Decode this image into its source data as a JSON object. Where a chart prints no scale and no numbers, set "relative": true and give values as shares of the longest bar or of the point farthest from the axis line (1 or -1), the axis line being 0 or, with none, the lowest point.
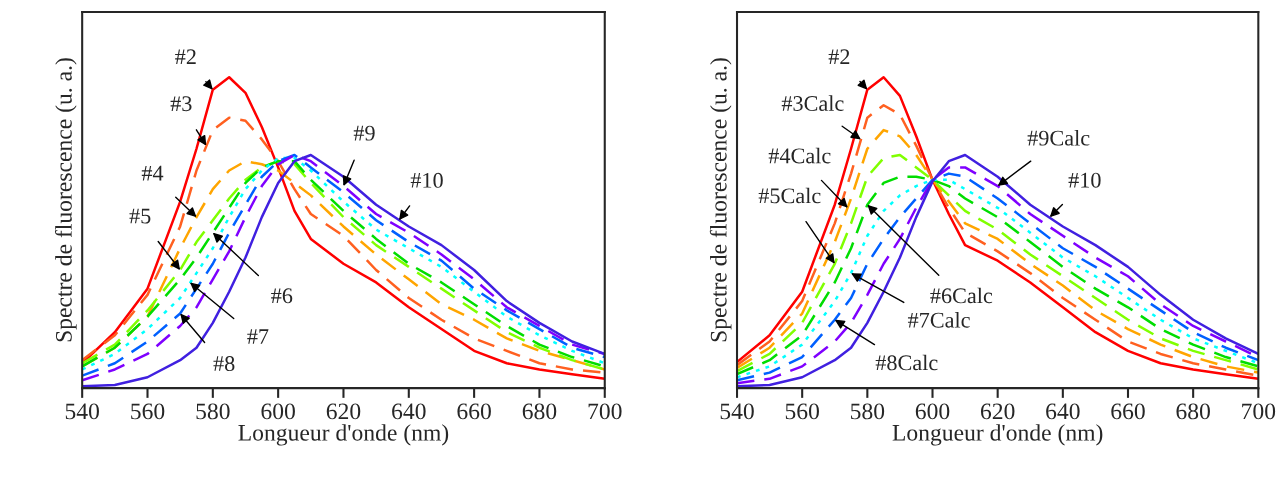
{
  "chart_data": [
    {
      "type": "line",
      "relative": true,
      "xlabel": "Longueur d'onde (nm)",
      "ylabel": "Spectre de fluorescence (u. a.)",
      "xlim": [
        540,
        700
      ],
      "xticks": [
        540,
        560,
        580,
        600,
        620,
        640,
        660,
        680,
        700
      ],
      "grid": false,
      "legend": false,
      "x": [
        540,
        550,
        560,
        570,
        575,
        580,
        585,
        590,
        595,
        600,
        605,
        610,
        620,
        630,
        640,
        650,
        660,
        670,
        680,
        690,
        700
      ],
      "series": [
        {
          "color": "#ff0000",
          "line_style": "solid",
          "values": [
            0.08,
            0.18,
            0.32,
            0.6,
            0.77,
            0.96,
            1.0,
            0.95,
            0.84,
            0.71,
            0.57,
            0.48,
            0.4,
            0.34,
            0.26,
            0.19,
            0.12,
            0.08,
            0.06,
            0.045,
            0.03
          ]
        },
        {
          "color": "#ff6020",
          "line_style": "dashed",
          "values": [
            0.09,
            0.17,
            0.3,
            0.52,
            0.7,
            0.83,
            0.87,
            0.86,
            0.8,
            0.73,
            0.64,
            0.56,
            0.49,
            0.38,
            0.29,
            0.22,
            0.16,
            0.12,
            0.08,
            0.06,
            0.05
          ]
        },
        {
          "color": "#ffa500",
          "line_style": "dashed",
          "values": [
            0.07,
            0.13,
            0.23,
            0.45,
            0.55,
            0.64,
            0.7,
            0.73,
            0.72,
            0.7,
            0.66,
            0.62,
            0.52,
            0.43,
            0.35,
            0.27,
            0.22,
            0.16,
            0.12,
            0.09,
            0.06
          ]
        },
        {
          "color": "#80ff00",
          "line_style": "dashed",
          "values": [
            0.08,
            0.14,
            0.25,
            0.38,
            0.47,
            0.54,
            0.61,
            0.67,
            0.71,
            0.73,
            0.72,
            0.66,
            0.55,
            0.46,
            0.39,
            0.32,
            0.25,
            0.18,
            0.13,
            0.09,
            0.06
          ]
        },
        {
          "color": "#00dd00",
          "line_style": "dashed",
          "values": [
            0.07,
            0.13,
            0.23,
            0.35,
            0.42,
            0.5,
            0.58,
            0.66,
            0.71,
            0.73,
            0.73,
            0.67,
            0.57,
            0.48,
            0.4,
            0.34,
            0.27,
            0.2,
            0.14,
            0.1,
            0.07
          ]
        },
        {
          "color": "#00ffff",
          "line_style": "dotted",
          "values": [
            0.06,
            0.11,
            0.19,
            0.29,
            0.37,
            0.45,
            0.55,
            0.64,
            0.7,
            0.74,
            0.74,
            0.7,
            0.6,
            0.51,
            0.45,
            0.39,
            0.31,
            0.23,
            0.17,
            0.12,
            0.08
          ]
        },
        {
          "color": "#0060ff",
          "line_style": "dashed",
          "values": [
            0.04,
            0.08,
            0.15,
            0.24,
            0.32,
            0.4,
            0.5,
            0.59,
            0.68,
            0.73,
            0.75,
            0.71,
            0.63,
            0.54,
            0.47,
            0.41,
            0.32,
            0.25,
            0.19,
            0.13,
            0.1
          ]
        },
        {
          "color": "#7f00ff",
          "line_style": "dashed",
          "values": [
            0.025,
            0.06,
            0.11,
            0.2,
            0.26,
            0.35,
            0.44,
            0.55,
            0.65,
            0.72,
            0.75,
            0.73,
            0.65,
            0.56,
            0.5,
            0.43,
            0.35,
            0.26,
            0.2,
            0.14,
            0.11
          ]
        },
        {
          "color": "#4020e0",
          "line_style": "solid",
          "values": [
            0.006,
            0.01,
            0.035,
            0.09,
            0.13,
            0.21,
            0.31,
            0.42,
            0.55,
            0.66,
            0.73,
            0.75,
            0.68,
            0.59,
            0.52,
            0.46,
            0.38,
            0.28,
            0.21,
            0.15,
            0.11
          ]
        }
      ],
      "annotations": [
        {
          "text": "#2",
          "x": 580,
          "y": 0.96
        },
        {
          "text": "#3",
          "x": 578,
          "y": 0.78
        },
        {
          "text": "#4",
          "x": 575,
          "y": 0.55
        },
        {
          "text": "#5",
          "x": 570,
          "y": 0.38
        },
        {
          "text": "#6",
          "x": 580,
          "y": 0.5
        },
        {
          "text": "#7",
          "x": 573,
          "y": 0.34
        },
        {
          "text": "#8",
          "x": 570,
          "y": 0.24
        },
        {
          "text": "#9",
          "x": 620,
          "y": 0.65
        },
        {
          "text": "#10",
          "x": 637,
          "y": 0.54
        }
      ]
    },
    {
      "type": "line",
      "relative": true,
      "xlabel": "Longueur d'onde (nm)",
      "ylabel": "Spectre de fluorescence (u. a.)",
      "xlim": [
        540,
        700
      ],
      "xticks": [
        540,
        560,
        580,
        600,
        620,
        640,
        660,
        680,
        700
      ],
      "grid": false,
      "legend": false,
      "x": [
        540,
        550,
        560,
        570,
        575,
        580,
        585,
        590,
        595,
        600,
        605,
        610,
        620,
        630,
        640,
        650,
        660,
        670,
        680,
        690,
        700
      ],
      "series": [
        {
          "color": "#ff0000",
          "line_style": "solid",
          "values": [
            0.084,
            0.17,
            0.31,
            0.59,
            0.77,
            0.96,
            1.0,
            0.94,
            0.81,
            0.67,
            0.56,
            0.46,
            0.41,
            0.34,
            0.26,
            0.18,
            0.12,
            0.08,
            0.06,
            0.045,
            0.03
          ]
        },
        {
          "color": "#ff6020",
          "line_style": "dashed",
          "values": [
            0.074,
            0.15,
            0.28,
            0.53,
            0.69,
            0.87,
            0.91,
            0.88,
            0.78,
            0.67,
            0.58,
            0.5,
            0.44,
            0.37,
            0.29,
            0.22,
            0.15,
            0.11,
            0.08,
            0.06,
            0.04
          ]
        },
        {
          "color": "#ffa500",
          "line_style": "dashed",
          "values": [
            0.065,
            0.13,
            0.24,
            0.47,
            0.61,
            0.77,
            0.83,
            0.81,
            0.75,
            0.67,
            0.6,
            0.53,
            0.48,
            0.4,
            0.33,
            0.25,
            0.19,
            0.14,
            0.1,
            0.07,
            0.05
          ]
        },
        {
          "color": "#80ff00",
          "line_style": "dashed",
          "values": [
            0.055,
            0.11,
            0.21,
            0.4,
            0.53,
            0.68,
            0.74,
            0.75,
            0.71,
            0.67,
            0.62,
            0.57,
            0.51,
            0.43,
            0.36,
            0.29,
            0.22,
            0.16,
            0.12,
            0.09,
            0.06
          ]
        },
        {
          "color": "#00dd00",
          "line_style": "dashed",
          "values": [
            0.045,
            0.09,
            0.17,
            0.34,
            0.45,
            0.59,
            0.66,
            0.68,
            0.68,
            0.67,
            0.65,
            0.61,
            0.55,
            0.47,
            0.39,
            0.32,
            0.26,
            0.19,
            0.14,
            0.1,
            0.07
          ]
        },
        {
          "color": "#00ffff",
          "line_style": "dotted",
          "values": [
            0.035,
            0.07,
            0.14,
            0.28,
            0.37,
            0.49,
            0.57,
            0.62,
            0.65,
            0.67,
            0.67,
            0.64,
            0.58,
            0.5,
            0.42,
            0.36,
            0.29,
            0.22,
            0.16,
            0.12,
            0.08
          ]
        },
        {
          "color": "#0060ff",
          "line_style": "dashed",
          "values": [
            0.025,
            0.05,
            0.1,
            0.22,
            0.29,
            0.4,
            0.48,
            0.55,
            0.61,
            0.67,
            0.69,
            0.68,
            0.61,
            0.53,
            0.45,
            0.39,
            0.32,
            0.25,
            0.18,
            0.13,
            0.09
          ]
        },
        {
          "color": "#7f00ff",
          "line_style": "dashed",
          "values": [
            0.016,
            0.03,
            0.07,
            0.15,
            0.21,
            0.3,
            0.4,
            0.48,
            0.58,
            0.67,
            0.71,
            0.71,
            0.65,
            0.56,
            0.49,
            0.42,
            0.36,
            0.27,
            0.2,
            0.15,
            0.1
          ]
        },
        {
          "color": "#4020e0",
          "line_style": "solid",
          "values": [
            0.006,
            0.01,
            0.035,
            0.09,
            0.13,
            0.21,
            0.31,
            0.42,
            0.55,
            0.665,
            0.73,
            0.75,
            0.68,
            0.59,
            0.52,
            0.46,
            0.39,
            0.3,
            0.22,
            0.16,
            0.11
          ]
        }
      ],
      "annotations": [
        {
          "text": "#2",
          "x": 580,
          "y": 0.96
        },
        {
          "text": "#3Calc",
          "x": 578,
          "y": 0.8
        },
        {
          "text": "#4Calc",
          "x": 574,
          "y": 0.58
        },
        {
          "text": "#5Calc",
          "x": 570,
          "y": 0.4
        },
        {
          "text": "#6Calc",
          "x": 580,
          "y": 0.59
        },
        {
          "text": "#7Calc",
          "x": 575,
          "y": 0.37
        },
        {
          "text": "#8Calc",
          "x": 570,
          "y": 0.22
        },
        {
          "text": "#9Calc",
          "x": 620,
          "y": 0.65
        },
        {
          "text": "#10",
          "x": 636,
          "y": 0.55
        }
      ]
    }
  ]
}
